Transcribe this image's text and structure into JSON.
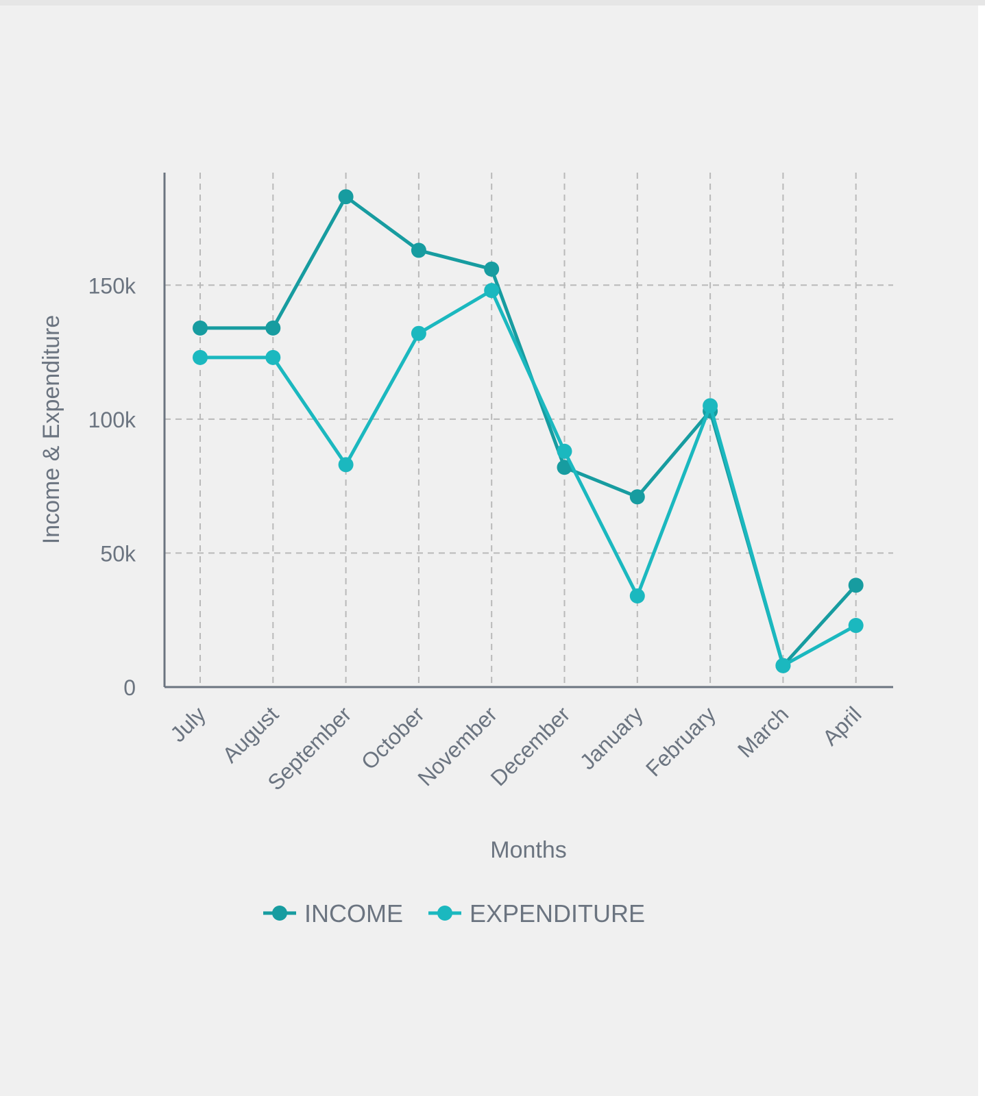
{
  "chart_data": {
    "type": "line",
    "title": "",
    "xlabel": "Months",
    "ylabel": "Income & Expenditure",
    "categories": [
      "July",
      "August",
      "September",
      "October",
      "November",
      "December",
      "January",
      "February",
      "March",
      "April"
    ],
    "ylim": [
      0,
      192000
    ],
    "yticks": [
      0,
      50000,
      100000,
      150000
    ],
    "ytick_labels": [
      "0",
      "50k",
      "100k",
      "150k"
    ],
    "grid": true,
    "legend_position": "bottom",
    "series": [
      {
        "name": "INCOME",
        "color": "#179ca0",
        "values": [
          134000,
          134000,
          183000,
          163000,
          156000,
          82000,
          71000,
          103000,
          8000,
          38000
        ]
      },
      {
        "name": "EXPENDITURE",
        "color": "#1bb8bf",
        "values": [
          123000,
          123000,
          83000,
          132000,
          148000,
          88000,
          34000,
          105000,
          8000,
          23000
        ]
      }
    ]
  },
  "colors": {
    "background": "#f0f0f0",
    "axis": "#6b7480",
    "grid": "#b9b9b9",
    "text": "#6b7480"
  }
}
